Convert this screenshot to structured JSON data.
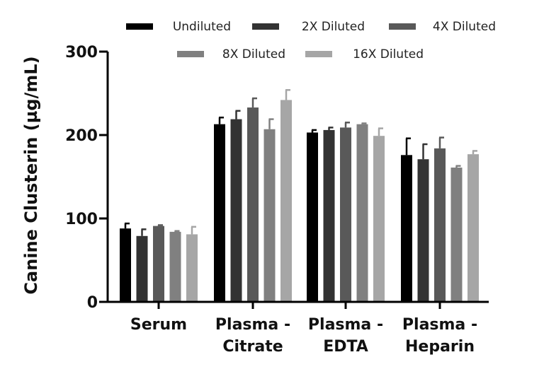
{
  "chart_data": {
    "type": "bar",
    "title": "",
    "xlabel": "",
    "ylabel": "Canine Clusterin (µg/mL)",
    "ylim": [
      0,
      300
    ],
    "yticks": [
      0,
      100,
      200,
      300
    ],
    "categories": [
      [
        "Serum"
      ],
      [
        "Plasma -",
        "Citrate"
      ],
      [
        "Plasma -",
        "EDTA"
      ],
      [
        "Plasma -",
        "Heparin"
      ]
    ],
    "series": [
      {
        "name": "Undiluted",
        "color": "#000000",
        "values": [
          88,
          213,
          203,
          176
        ],
        "errors": [
          6,
          8,
          3,
          20
        ]
      },
      {
        "name": "2X Diluted",
        "color": "#333333",
        "values": [
          79,
          219,
          206,
          171
        ],
        "errors": [
          8,
          10,
          3,
          18
        ]
      },
      {
        "name": "4X Diluted",
        "color": "#595959",
        "values": [
          91,
          233,
          209,
          184
        ],
        "errors": [
          1,
          11,
          6,
          13
        ]
      },
      {
        "name": "8X Diluted",
        "color": "#808080",
        "values": [
          84,
          207,
          213,
          161
        ],
        "errors": [
          1,
          12,
          1,
          2
        ]
      },
      {
        "name": "16X Diluted",
        "color": "#a6a6a6",
        "values": [
          81,
          242,
          199,
          177
        ],
        "errors": [
          9,
          12,
          9,
          4
        ]
      }
    ],
    "legend_position": "top"
  }
}
